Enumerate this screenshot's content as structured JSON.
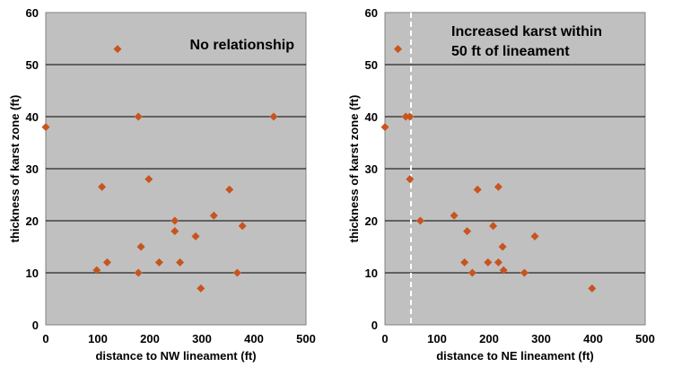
{
  "colors": {
    "plot_background": "#c0c0c0",
    "gridline": "#000000",
    "marker": "#c8541e",
    "reference_line": "#ffffff"
  },
  "chart_data": [
    {
      "type": "scatter",
      "title": "No relationship",
      "xlabel": "distance to NW lineament (ft)",
      "ylabel": "thickness of karst zone (ft)",
      "xlim": [
        0,
        500
      ],
      "ylim": [
        0,
        60
      ],
      "xticks": [
        0,
        100,
        200,
        300,
        400,
        500
      ],
      "yticks": [
        0,
        10,
        20,
        30,
        40,
        50,
        60
      ],
      "grid": "horizontal",
      "marker": "diamond",
      "points": [
        {
          "x": 0,
          "y": 38
        },
        {
          "x": 98,
          "y": 10.5
        },
        {
          "x": 108,
          "y": 26.5
        },
        {
          "x": 118,
          "y": 12
        },
        {
          "x": 138,
          "y": 53
        },
        {
          "x": 178,
          "y": 40
        },
        {
          "x": 178,
          "y": 10
        },
        {
          "x": 183,
          "y": 15
        },
        {
          "x": 198,
          "y": 28
        },
        {
          "x": 218,
          "y": 12
        },
        {
          "x": 248,
          "y": 20
        },
        {
          "x": 248,
          "y": 18
        },
        {
          "x": 258,
          "y": 12
        },
        {
          "x": 288,
          "y": 17
        },
        {
          "x": 298,
          "y": 7
        },
        {
          "x": 323,
          "y": 21
        },
        {
          "x": 353,
          "y": 26
        },
        {
          "x": 368,
          "y": 10
        },
        {
          "x": 378,
          "y": 19
        },
        {
          "x": 438,
          "y": 40
        }
      ]
    },
    {
      "type": "scatter",
      "title": "Increased karst within 50 ft of lineament",
      "title_lines": [
        "Increased karst within",
        "50 ft of lineament"
      ],
      "xlabel": "distance to NE lineament (ft)",
      "ylabel": "thickness of karst zone (ft)",
      "xlim": [
        0,
        500
      ],
      "ylim": [
        0,
        60
      ],
      "xticks": [
        0,
        100,
        200,
        300,
        400,
        500
      ],
      "yticks": [
        0,
        10,
        20,
        30,
        40,
        50,
        60
      ],
      "grid": "horizontal",
      "marker": "diamond",
      "reference_line": {
        "x": 50,
        "style": "dashed"
      },
      "points": [
        {
          "x": 0,
          "y": 38
        },
        {
          "x": 25,
          "y": 53
        },
        {
          "x": 40,
          "y": 40
        },
        {
          "x": 48,
          "y": 40
        },
        {
          "x": 48,
          "y": 28
        },
        {
          "x": 68,
          "y": 20
        },
        {
          "x": 133,
          "y": 21
        },
        {
          "x": 153,
          "y": 12
        },
        {
          "x": 158,
          "y": 18
        },
        {
          "x": 168,
          "y": 10
        },
        {
          "x": 178,
          "y": 26
        },
        {
          "x": 198,
          "y": 12
        },
        {
          "x": 208,
          "y": 19
        },
        {
          "x": 218,
          "y": 26.5
        },
        {
          "x": 218,
          "y": 12
        },
        {
          "x": 226,
          "y": 15
        },
        {
          "x": 228,
          "y": 10.5
        },
        {
          "x": 268,
          "y": 10
        },
        {
          "x": 288,
          "y": 17
        },
        {
          "x": 398,
          "y": 7
        }
      ]
    }
  ]
}
